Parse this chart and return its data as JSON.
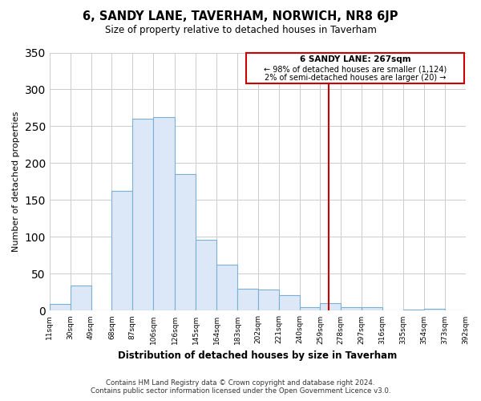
{
  "title": "6, SANDY LANE, TAVERHAM, NORWICH, NR8 6JP",
  "subtitle": "Size of property relative to detached houses in Taverham",
  "xlabel": "Distribution of detached houses by size in Taverham",
  "ylabel": "Number of detached properties",
  "bar_color": "#dce8f8",
  "bar_edge_color": "#7bafd4",
  "bins": [
    11,
    30,
    49,
    68,
    87,
    106,
    126,
    145,
    164,
    183,
    202,
    221,
    240,
    259,
    278,
    297,
    316,
    335,
    354,
    373,
    392
  ],
  "bin_labels": [
    "11sqm",
    "30sqm",
    "49sqm",
    "68sqm",
    "87sqm",
    "106sqm",
    "126sqm",
    "145sqm",
    "164sqm",
    "183sqm",
    "202sqm",
    "221sqm",
    "240sqm",
    "259sqm",
    "278sqm",
    "297sqm",
    "316sqm",
    "335sqm",
    "354sqm",
    "373sqm",
    "392sqm"
  ],
  "counts": [
    9,
    34,
    0,
    162,
    260,
    262,
    185,
    96,
    62,
    30,
    29,
    21,
    5,
    10,
    5,
    5,
    0,
    2,
    3,
    1
  ],
  "vline_x": 267,
  "vline_color": "#cc0000",
  "ylim": [
    0,
    350
  ],
  "yticks": [
    0,
    50,
    100,
    150,
    200,
    250,
    300,
    350
  ],
  "annotation_title": "6 SANDY LANE: 267sqm",
  "annotation_line1": "← 98% of detached houses are smaller (1,124)",
  "annotation_line2": "2% of semi-detached houses are larger (20) →",
  "footer_line1": "Contains HM Land Registry data © Crown copyright and database right 2024.",
  "footer_line2": "Contains public sector information licensed under the Open Government Licence v3.0.",
  "background_color": "#ffffff",
  "grid_color": "#cccccc"
}
